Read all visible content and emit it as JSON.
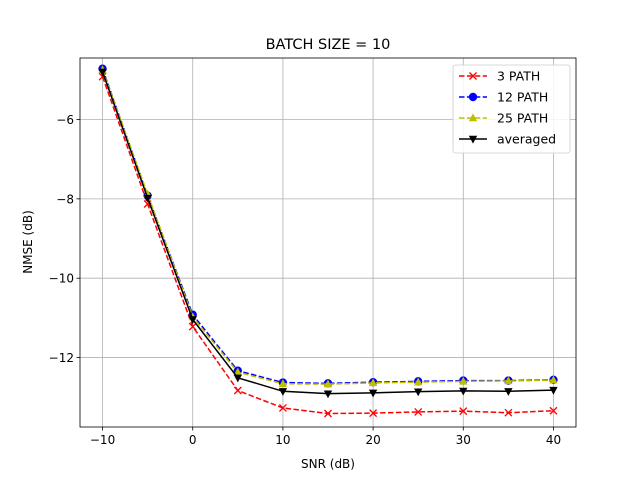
{
  "chart_data": {
    "type": "line",
    "title": "BATCH SIZE = 10",
    "xlabel": "SNR (dB)",
    "ylabel": "NMSE (dB)",
    "xlim": [
      -12.5,
      42.5
    ],
    "ylim": [
      -13.75,
      -4.45
    ],
    "xticks": [
      -10,
      0,
      10,
      20,
      30,
      40
    ],
    "xtick_labels": [
      "−10",
      "0",
      "10",
      "20",
      "30",
      "40"
    ],
    "yticks": [
      -12,
      -10,
      -8,
      -6
    ],
    "ytick_labels": [
      "−12",
      "−10",
      "−8",
      "−6"
    ],
    "grid": true,
    "legend_position": "top-right",
    "x": [
      -10,
      -5,
      0,
      5,
      10,
      15,
      20,
      25,
      30,
      35,
      40
    ],
    "series": [
      {
        "name": "3 PATH",
        "color": "#ff0000",
        "linestyle": "dashed",
        "marker": "x",
        "values": [
          -4.92,
          -8.13,
          -11.22,
          -12.83,
          -13.27,
          -13.41,
          -13.4,
          -13.37,
          -13.35,
          -13.39,
          -13.34
        ]
      },
      {
        "name": "12 PATH",
        "color": "#0000ff",
        "linestyle": "dashed",
        "marker": "circle",
        "values": [
          -4.72,
          -7.92,
          -10.92,
          -12.33,
          -12.63,
          -12.65,
          -12.62,
          -12.6,
          -12.58,
          -12.58,
          -12.56
        ]
      },
      {
        "name": "25 PATH",
        "color": "#bfbf00",
        "linestyle": "dashed",
        "marker": "triangle-up",
        "values": [
          -4.75,
          -7.88,
          -10.98,
          -12.37,
          -12.66,
          -12.67,
          -12.64,
          -12.62,
          -12.6,
          -12.59,
          -12.57
        ]
      },
      {
        "name": "averaged",
        "color": "#000000",
        "linestyle": "solid",
        "marker": "triangle-down",
        "values": [
          -4.8,
          -7.98,
          -11.04,
          -12.51,
          -12.85,
          -12.91,
          -12.89,
          -12.86,
          -12.84,
          -12.85,
          -12.82
        ]
      }
    ]
  }
}
